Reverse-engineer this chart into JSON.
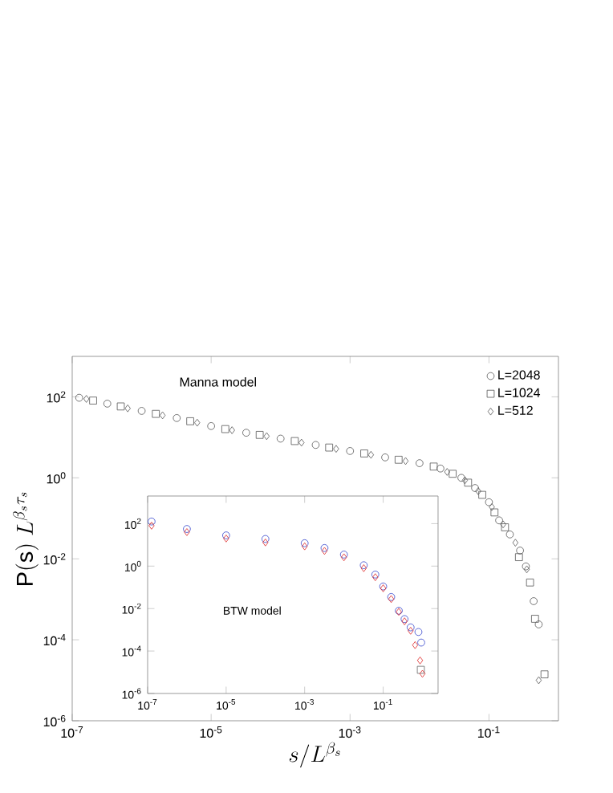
{
  "chart_data": [
    {
      "type": "scatter",
      "xlabel": "s/L^{\\beta_s}",
      "ylabel": "\\mathrm{P(s)}\\;L^{\\beta_s\\tau_s}",
      "annotations": [
        "Manna model"
      ],
      "log": "xy",
      "legend": "top right",
      "xlim": [
        1e-07,
        1
      ],
      "ylim": [
        1e-06,
        1000
      ],
      "xticks": [
        {
          "value": 1e-07,
          "label": "10$^{-7}$"
        },
        {
          "value": 1e-05,
          "label": "10$^{-5}$"
        },
        {
          "value": 0.001,
          "label": "10$^{-3}$"
        },
        {
          "value": 0.1,
          "label": "10$^{-1}$"
        }
      ],
      "yticks": [
        {
          "value": 1e-06,
          "label": "10$^{-6}$"
        },
        {
          "value": 0.0001,
          "label": "10$^{-4}$"
        },
        {
          "value": 0.01,
          "label": "10$^{-2}$"
        },
        {
          "value": 1,
          "label": "10$^{0}$"
        },
        {
          "value": 100,
          "label": "10$^{2}$"
        }
      ],
      "series": [
        {
          "name": "L=2048",
          "color": "#555555",
          "marker": "circle",
          "x": [
            1.26e-07,
            3.2e-07,
            1e-06,
            3.2e-06,
            1e-05,
            3.2e-05,
            0.0001,
            0.00032,
            0.001,
            0.0032,
            0.01,
            0.02,
            0.04,
            0.063,
            0.1,
            0.14,
            0.2,
            0.28,
            0.34,
            0.44,
            0.52
          ],
          "values": [
            95,
            68,
            45,
            30,
            19,
            13,
            9.3,
            6.5,
            4.6,
            3.2,
            2.3,
            1.7,
            1.0,
            0.56,
            0.25,
            0.089,
            0.04,
            0.016,
            0.0065,
            0.0009,
            0.00024
          ]
        },
        {
          "name": "L=1024",
          "color": "#555555",
          "marker": "square",
          "x": [
            2e-07,
            5e-07,
            1.6e-06,
            5e-06,
            1.6e-05,
            5e-05,
            0.00016,
            0.0005,
            0.0016,
            0.005,
            0.016,
            0.03,
            0.05,
            0.08,
            0.12,
            0.17,
            0.27,
            0.39,
            0.46,
            0.63
          ],
          "values": [
            81,
            58,
            38,
            25,
            16,
            11.5,
            8.1,
            5.6,
            4.0,
            2.8,
            1.9,
            1.26,
            0.76,
            0.38,
            0.14,
            0.06,
            0.011,
            0.0026,
            0.00033,
            1.4e-05
          ]
        },
        {
          "name": "L=512",
          "color": "#555555",
          "marker": "diamond",
          "x": [
            1.6e-07,
            6.3e-07,
            2e-06,
            6.3e-06,
            2e-05,
            6.3e-05,
            0.0002,
            0.00063,
            0.002,
            0.0063,
            0.025,
            0.045,
            0.07,
            0.11,
            0.16,
            0.24,
            0.35,
            0.52
          ],
          "values": [
            89,
            52,
            35,
            23,
            15,
            10.7,
            7.4,
            5.2,
            3.7,
            2.6,
            1.4,
            0.87,
            0.47,
            0.19,
            0.071,
            0.025,
            0.0055,
            1e-05
          ]
        }
      ]
    },
    {
      "type": "scatter",
      "annotations": [
        "BTW model"
      ],
      "log": "xy",
      "xlim": [
        1e-07,
        2.5
      ],
      "ylim": [
        1e-06,
        2000
      ],
      "xticks": [
        {
          "value": 1e-07,
          "label": "10$^{-7}$"
        },
        {
          "value": 1e-05,
          "label": "10$^{-5}$"
        },
        {
          "value": 0.001,
          "label": "10$^{-3}$"
        },
        {
          "value": 0.1,
          "label": "10$^{-1}$"
        }
      ],
      "yticks": [
        {
          "value": 1e-06,
          "label": "10$^{-6}$"
        },
        {
          "value": 0.0001,
          "label": "10$^{-4}$"
        },
        {
          "value": 0.01,
          "label": "10$^{-2}$"
        },
        {
          "value": 1,
          "label": "10$^{0}$"
        },
        {
          "value": 100,
          "label": "10$^{2}$"
        }
      ],
      "series": [
        {
          "color": "#3344cc",
          "marker": "circle",
          "x": [
            1.26e-07,
            1e-06,
            1e-05,
            0.0001,
            0.001,
            0.0032,
            0.01,
            0.032,
            0.063,
            0.1,
            0.16,
            0.25,
            0.35,
            0.5,
            0.79,
            0.93
          ],
          "values": [
            126,
            56,
            28,
            19,
            12,
            7.1,
            3.5,
            1.1,
            0.4,
            0.11,
            0.035,
            0.0079,
            0.0032,
            0.0013,
            0.00079,
            0.00025
          ]
        },
        {
          "color": "#666666",
          "marker": "square",
          "x": [
            0.91
          ],
          "values": [
            1.3e-05
          ]
        },
        {
          "color": "#dd2222",
          "marker": "diamond",
          "x": [
            1.26e-07,
            1e-06,
            1e-05,
            0.0001,
            0.001,
            0.0032,
            0.01,
            0.032,
            0.063,
            0.1,
            0.16,
            0.25,
            0.35,
            0.5,
            0.65,
            0.87,
            1.0
          ],
          "values": [
            80,
            40,
            20,
            13,
            8.5,
            5.2,
            2.6,
            0.8,
            0.3,
            0.09,
            0.028,
            0.007,
            0.0025,
            0.0009,
            0.00019,
            3.6e-05,
            8.5e-06
          ]
        }
      ]
    }
  ]
}
